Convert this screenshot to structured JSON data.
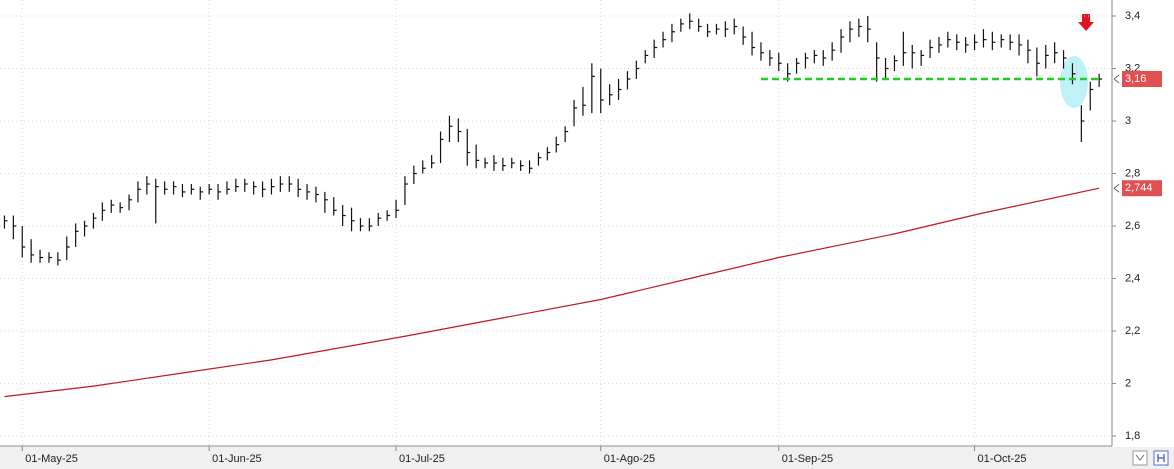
{
  "chart_data": {
    "type": "ohlc",
    "categories": [
      null,
      null,
      "01-May-25",
      null,
      null,
      null,
      null,
      null,
      null,
      null,
      null,
      null,
      null,
      null,
      null,
      null,
      null,
      null,
      null,
      null,
      null,
      null,
      null,
      "01-Jun-25",
      null,
      null,
      null,
      null,
      null,
      null,
      null,
      null,
      null,
      null,
      null,
      null,
      null,
      null,
      null,
      null,
      null,
      null,
      null,
      null,
      "01-Jul-25",
      null,
      null,
      null,
      null,
      null,
      null,
      null,
      null,
      null,
      null,
      null,
      null,
      null,
      null,
      null,
      null,
      null,
      null,
      null,
      null,
      null,
      null,
      "01-Ago-25",
      null,
      null,
      null,
      null,
      null,
      null,
      null,
      null,
      null,
      null,
      null,
      null,
      null,
      null,
      null,
      null,
      null,
      null,
      null,
      "01-Sep-25",
      null,
      null,
      null,
      null,
      null,
      null,
      null,
      null,
      null,
      null,
      null,
      null,
      null,
      null,
      null,
      null,
      null,
      null,
      null,
      null,
      null,
      "01-Oct-25",
      null,
      null,
      null,
      null,
      null,
      null,
      null,
      null,
      null,
      null,
      null,
      null,
      null,
      null
    ],
    "close": [
      2.62,
      2.6,
      2.52,
      2.49,
      2.48,
      2.48,
      2.47,
      2.52,
      2.58,
      2.6,
      2.63,
      2.66,
      2.68,
      2.67,
      2.7,
      2.74,
      2.76,
      2.75,
      2.74,
      2.75,
      2.73,
      2.74,
      2.73,
      2.74,
      2.73,
      2.74,
      2.75,
      2.76,
      2.75,
      2.74,
      2.75,
      2.76,
      2.76,
      2.74,
      2.73,
      2.72,
      2.7,
      2.66,
      2.64,
      2.62,
      2.6,
      2.6,
      2.63,
      2.64,
      2.66,
      2.76,
      2.8,
      2.82,
      2.84,
      2.93,
      2.98,
      2.96,
      2.88,
      2.85,
      2.84,
      2.84,
      2.83,
      2.84,
      2.83,
      2.82,
      2.86,
      2.88,
      2.91,
      2.96,
      3.05,
      3.06,
      3.17,
      3.08,
      3.1,
      3.12,
      3.16,
      3.2,
      3.25,
      3.28,
      3.31,
      3.34,
      3.37,
      3.38,
      3.36,
      3.34,
      3.35,
      3.35,
      3.36,
      3.32,
      3.28,
      3.26,
      3.24,
      3.22,
      3.18,
      3.22,
      3.24,
      3.25,
      3.24,
      3.27,
      3.32,
      3.35,
      3.36,
      3.35,
      3.24,
      3.2,
      3.23,
      3.26,
      3.26,
      3.25,
      3.28,
      3.29,
      3.31,
      3.3,
      3.29,
      3.3,
      3.31,
      3.3,
      3.31,
      3.3,
      3.29,
      3.27,
      3.22,
      3.25,
      3.26,
      3.24,
      3.18,
      3.0,
      3.12,
      3.16
    ],
    "high": [
      2.64,
      2.64,
      2.6,
      2.55,
      2.51,
      2.5,
      2.5,
      2.56,
      2.61,
      2.62,
      2.65,
      2.69,
      2.7,
      2.69,
      2.72,
      2.77,
      2.79,
      2.78,
      2.77,
      2.77,
      2.76,
      2.76,
      2.75,
      2.76,
      2.76,
      2.77,
      2.78,
      2.78,
      2.77,
      2.77,
      2.78,
      2.79,
      2.79,
      2.78,
      2.76,
      2.75,
      2.73,
      2.71,
      2.68,
      2.67,
      2.63,
      2.63,
      2.65,
      2.66,
      2.7,
      2.79,
      2.83,
      2.85,
      2.87,
      2.96,
      3.02,
      3.01,
      2.97,
      2.91,
      2.86,
      2.87,
      2.86,
      2.86,
      2.85,
      2.85,
      2.88,
      2.9,
      2.94,
      2.98,
      3.08,
      3.13,
      3.22,
      3.2,
      3.14,
      3.16,
      3.19,
      3.23,
      3.27,
      3.31,
      3.34,
      3.37,
      3.39,
      3.41,
      3.39,
      3.37,
      3.37,
      3.38,
      3.39,
      3.36,
      3.34,
      3.3,
      3.27,
      3.26,
      3.22,
      3.24,
      3.26,
      3.27,
      3.27,
      3.3,
      3.35,
      3.38,
      3.39,
      3.4,
      3.3,
      3.24,
      3.25,
      3.34,
      3.29,
      3.27,
      3.31,
      3.32,
      3.34,
      3.33,
      3.32,
      3.33,
      3.35,
      3.34,
      3.33,
      3.33,
      3.33,
      3.31,
      3.28,
      3.29,
      3.3,
      3.27,
      3.22,
      3.06,
      3.15,
      3.18
    ],
    "low": [
      2.59,
      2.55,
      2.48,
      2.46,
      2.46,
      2.46,
      2.45,
      2.47,
      2.52,
      2.56,
      2.59,
      2.62,
      2.65,
      2.65,
      2.66,
      2.69,
      2.72,
      2.61,
      2.72,
      2.72,
      2.71,
      2.72,
      2.7,
      2.72,
      2.7,
      2.72,
      2.73,
      2.73,
      2.72,
      2.71,
      2.72,
      2.73,
      2.73,
      2.71,
      2.7,
      2.69,
      2.65,
      2.64,
      2.6,
      2.58,
      2.58,
      2.58,
      2.6,
      2.62,
      2.63,
      2.68,
      2.76,
      2.8,
      2.82,
      2.84,
      2.92,
      2.92,
      2.83,
      2.82,
      2.82,
      2.81,
      2.81,
      2.82,
      2.81,
      2.8,
      2.83,
      2.85,
      2.88,
      2.92,
      2.98,
      3.02,
      3.03,
      3.03,
      3.06,
      3.08,
      3.12,
      3.16,
      3.22,
      3.24,
      3.28,
      3.3,
      3.34,
      3.35,
      3.34,
      3.32,
      3.33,
      3.32,
      3.33,
      3.29,
      3.25,
      3.23,
      3.21,
      3.19,
      3.15,
      3.18,
      3.2,
      3.22,
      3.21,
      3.23,
      3.26,
      3.3,
      3.32,
      3.3,
      3.15,
      3.16,
      3.19,
      3.21,
      3.2,
      3.21,
      3.24,
      3.26,
      3.28,
      3.27,
      3.26,
      3.27,
      3.28,
      3.27,
      3.28,
      3.27,
      3.25,
      3.22,
      3.17,
      3.2,
      3.22,
      3.2,
      3.14,
      2.92,
      3.04,
      3.13
    ],
    "bar_color": "#111111",
    "ma": {
      "x": [
        0,
        10,
        20,
        30,
        45,
        56,
        67,
        77,
        87,
        100,
        110,
        123
      ],
      "values": [
        1.95,
        1.99,
        2.04,
        2.09,
        2.18,
        2.25,
        2.32,
        2.4,
        2.48,
        2.57,
        2.65,
        2.744
      ],
      "color": "#c0181e"
    },
    "support_line": {
      "value": 3.16,
      "start": 85,
      "color": "#22cc22"
    },
    "last_price": {
      "value": 3.16,
      "label": "3,16",
      "color": "#e05050"
    },
    "ma_last": {
      "value": 2.744,
      "label": "2,744",
      "color": "#e05050"
    },
    "ylim": [
      1.762,
      3.461
    ],
    "yticks": [
      {
        "value": 1.8,
        "label": "1,8"
      },
      2,
      {
        "value": 2.2,
        "label": "2,2"
      },
      {
        "value": 2.4,
        "label": "2,4"
      },
      {
        "value": 2.6,
        "label": "2,6"
      },
      {
        "value": 2.8,
        "label": "2,8"
      },
      3,
      {
        "value": 3.2,
        "label": "3,2"
      },
      {
        "value": 3.4,
        "label": "3,4"
      }
    ],
    "grid": true
  }
}
